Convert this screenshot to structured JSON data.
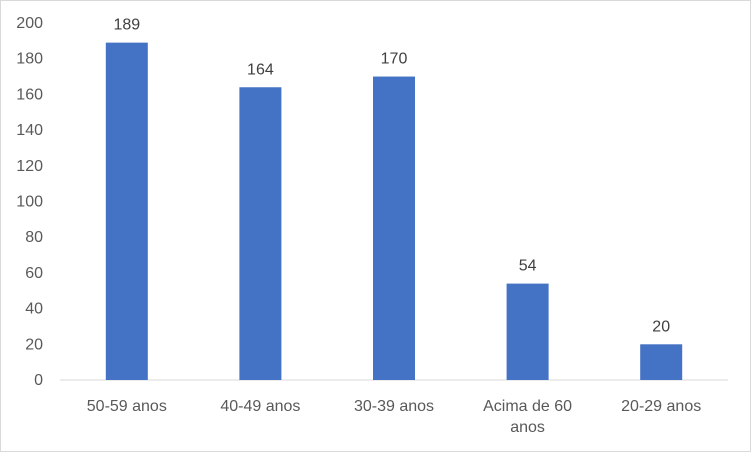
{
  "chart_data": {
    "type": "bar",
    "categories": [
      "50-59 anos",
      "40-49 anos",
      "30-39 anos",
      "Acima de 60 anos",
      "20-29 anos"
    ],
    "category_lines": [
      [
        "50-59 anos"
      ],
      [
        "40-49 anos"
      ],
      [
        "30-39 anos"
      ],
      [
        "Acima de 60",
        "anos"
      ],
      [
        "20-29 anos"
      ]
    ],
    "values": [
      189,
      164,
      170,
      54,
      20
    ],
    "ylim": [
      0,
      200
    ],
    "ytick_step": 20,
    "bar_color": "#4472c4",
    "data_labels": true,
    "grid": false,
    "legend": "none"
  }
}
